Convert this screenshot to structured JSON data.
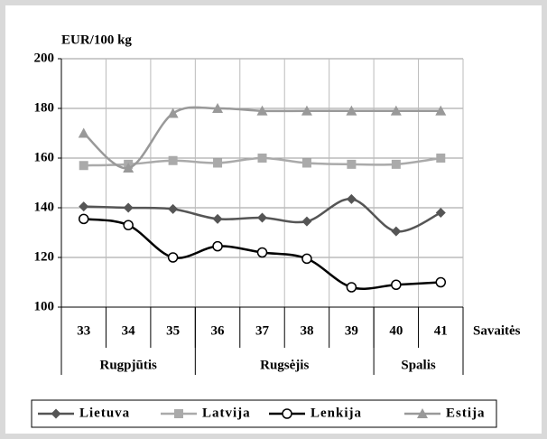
{
  "chart_data": {
    "type": "line",
    "y_label": "EUR/100 kg",
    "x_label": "Savaitės",
    "categories": [
      "33",
      "34",
      "35",
      "36",
      "37",
      "38",
      "39",
      "40",
      "41"
    ],
    "groups": [
      {
        "label": "Rugpjūtis",
        "count": 3
      },
      {
        "label": "Rugsėjis",
        "count": 4
      },
      {
        "label": "Spalis",
        "count": 2
      }
    ],
    "series": [
      {
        "name": "Lietuva",
        "color": "#555555",
        "marker": "diamond",
        "values": [
          140.5,
          140,
          139.5,
          135.5,
          136,
          134.5,
          143.5,
          130.5,
          138
        ]
      },
      {
        "name": "Latvija",
        "color": "#aaaaaa",
        "marker": "square",
        "values": [
          157,
          157.5,
          159,
          158,
          160,
          158,
          157.5,
          157.5,
          160
        ]
      },
      {
        "name": "Lenkija",
        "color": "#000000",
        "marker": "circle",
        "values": [
          135.5,
          133,
          120,
          124.5,
          122,
          119.5,
          108,
          109,
          110
        ]
      },
      {
        "name": "Estija",
        "color": "#999999",
        "marker": "triangle",
        "values": [
          170,
          156,
          178,
          180,
          179,
          179,
          179,
          179,
          179
        ]
      }
    ],
    "ylim": [
      100,
      200
    ],
    "yticks": [
      100,
      120,
      140,
      160,
      180,
      200
    ],
    "grid": true,
    "legend": "bottom"
  }
}
